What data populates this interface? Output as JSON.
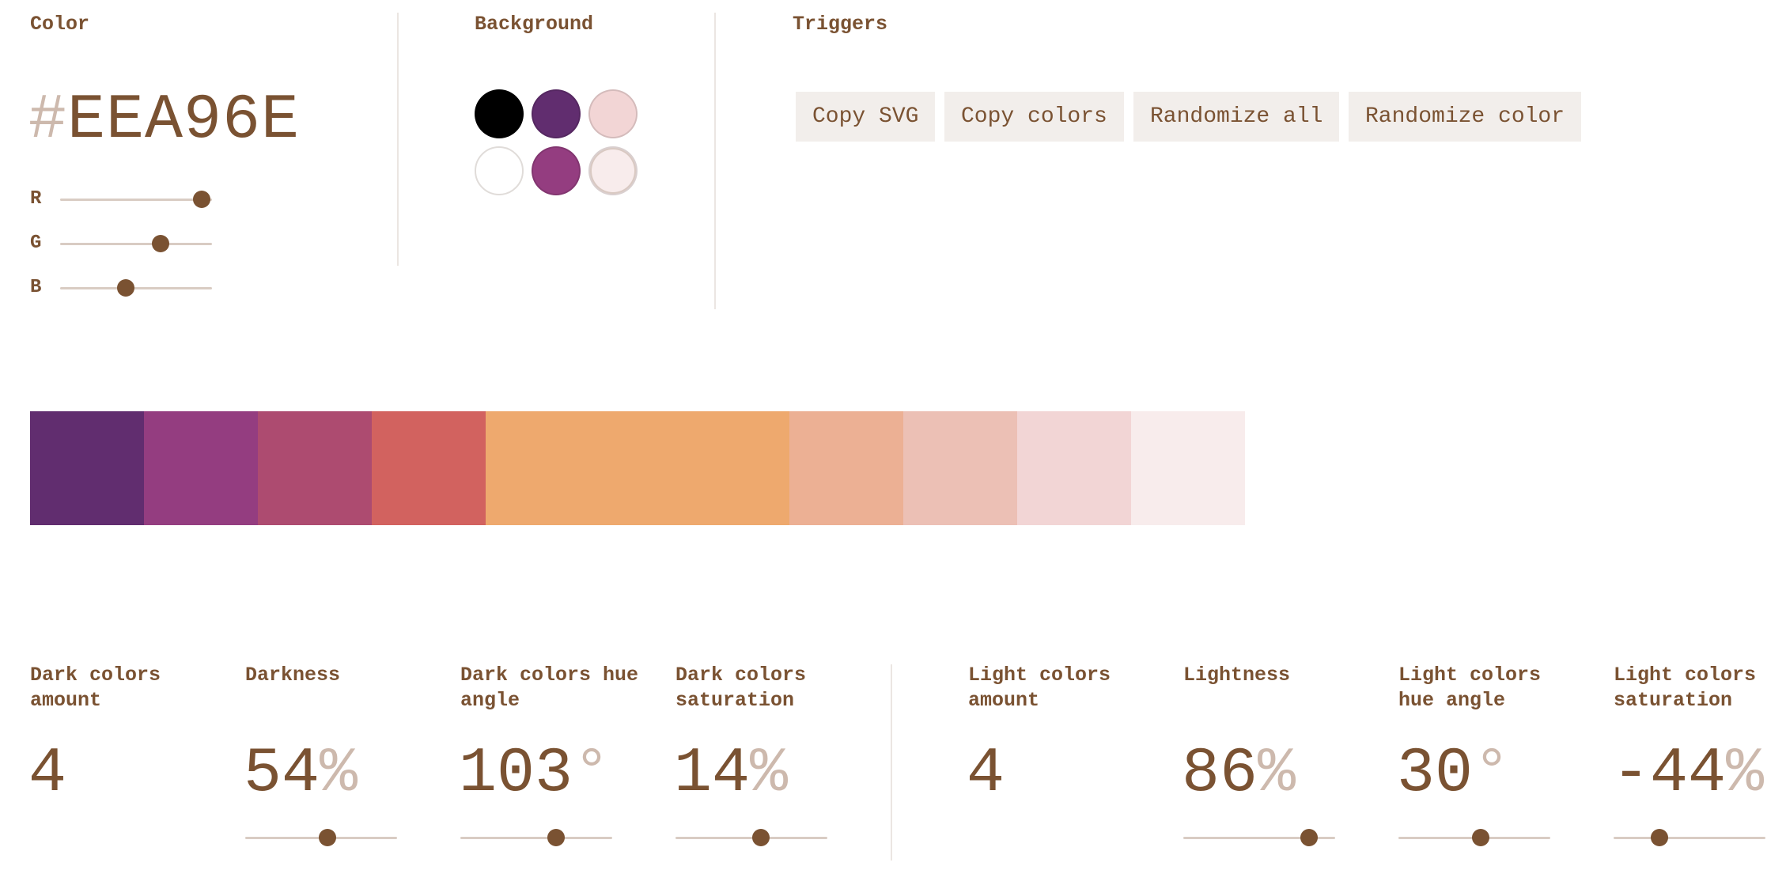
{
  "color": {
    "heading": "Color",
    "hash": "#",
    "hex": "EEA96E",
    "channels": [
      {
        "label": "R",
        "value": 238
      },
      {
        "label": "G",
        "value": 169
      },
      {
        "label": "B",
        "value": 110
      }
    ]
  },
  "background": {
    "heading": "Background",
    "swatches": [
      {
        "name": "black",
        "color": "#000000",
        "selected": false
      },
      {
        "name": "dark-purple",
        "color": "#612d6f",
        "selected": false
      },
      {
        "name": "light-pink",
        "color": "#f2d5d5",
        "selected": false
      },
      {
        "name": "white",
        "color": "#ffffff",
        "selected": false
      },
      {
        "name": "magenta",
        "color": "#943d80",
        "selected": false
      },
      {
        "name": "very-light-pink",
        "color": "#f8ecec",
        "selected": true
      }
    ]
  },
  "triggers": {
    "heading": "Triggers",
    "buttons": [
      "Copy SVG",
      "Copy colors",
      "Randomize all",
      "Randomize color"
    ]
  },
  "palette": [
    {
      "color": "#612d6f",
      "weight": 1
    },
    {
      "color": "#943d80",
      "weight": 1
    },
    {
      "color": "#ad4b70",
      "weight": 1
    },
    {
      "color": "#d2625f",
      "weight": 1
    },
    {
      "color": "#eea96e",
      "weight": 2.67
    },
    {
      "color": "#ecb094",
      "weight": 1
    },
    {
      "color": "#ecc0b5",
      "weight": 1
    },
    {
      "color": "#f2d5d5",
      "weight": 1
    },
    {
      "color": "#f8ecec",
      "weight": 1
    }
  ],
  "dark": {
    "amount": {
      "label": "Dark colors amount",
      "value": "4"
    },
    "darkness": {
      "label": "Darkness",
      "value": "54",
      "unit": "%",
      "level": 0.54
    },
    "hue": {
      "label": "Dark colors hue angle",
      "value": "103",
      "unit": "°",
      "level": 0.63
    },
    "saturation": {
      "label": "Dark colors saturation",
      "value": "14",
      "unit": "%",
      "level": 0.56
    }
  },
  "light": {
    "amount": {
      "label": "Light colors amount",
      "value": "4"
    },
    "lightness": {
      "label": "Lightness",
      "value": "86",
      "unit": "%",
      "level": 0.83
    },
    "hue": {
      "label": "Light colors hue angle",
      "value": "30",
      "unit": "°",
      "level": 0.54
    },
    "saturation": {
      "label": "Light colors saturation",
      "value": "-44",
      "unit": "%",
      "level": 0.3
    }
  },
  "colors": {
    "text": "#7a5232",
    "muted": "#cdb9ad",
    "track": "#d9ccc3",
    "button_bg": "#f2eeeb"
  }
}
